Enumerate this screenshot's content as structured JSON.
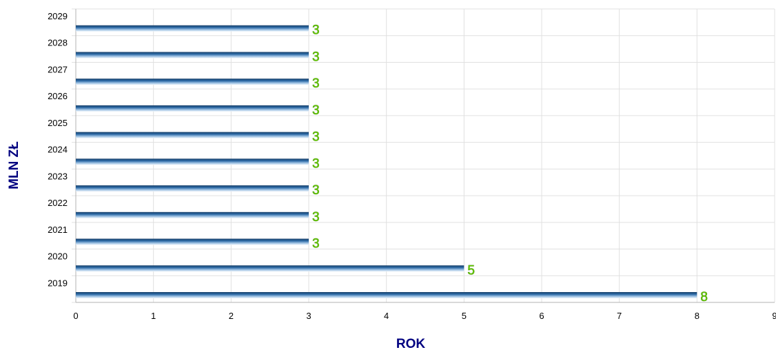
{
  "chart_data": {
    "type": "bar",
    "orientation": "horizontal",
    "categories": [
      "2019",
      "2020",
      "2021",
      "2022",
      "2023",
      "2024",
      "2025",
      "2026",
      "2027",
      "2028",
      "2029"
    ],
    "values": [
      8,
      5,
      3,
      3,
      3,
      3,
      3,
      3,
      3,
      3,
      3
    ],
    "value_axis_label": "ROK",
    "category_axis_label": "MLN ZŁ",
    "value_axis_ticks": [
      0,
      1,
      2,
      3,
      4,
      5,
      6,
      7,
      8,
      9
    ],
    "xlim": [
      0,
      9
    ],
    "grid": true,
    "data_labels": true,
    "legend": "none",
    "colors": {
      "bar_dark": "#1f4f7f",
      "bar_light": "#eef5fb",
      "data_label": "#66cc00",
      "axis_title": "#000080",
      "grid": "#e0e0e0"
    }
  }
}
